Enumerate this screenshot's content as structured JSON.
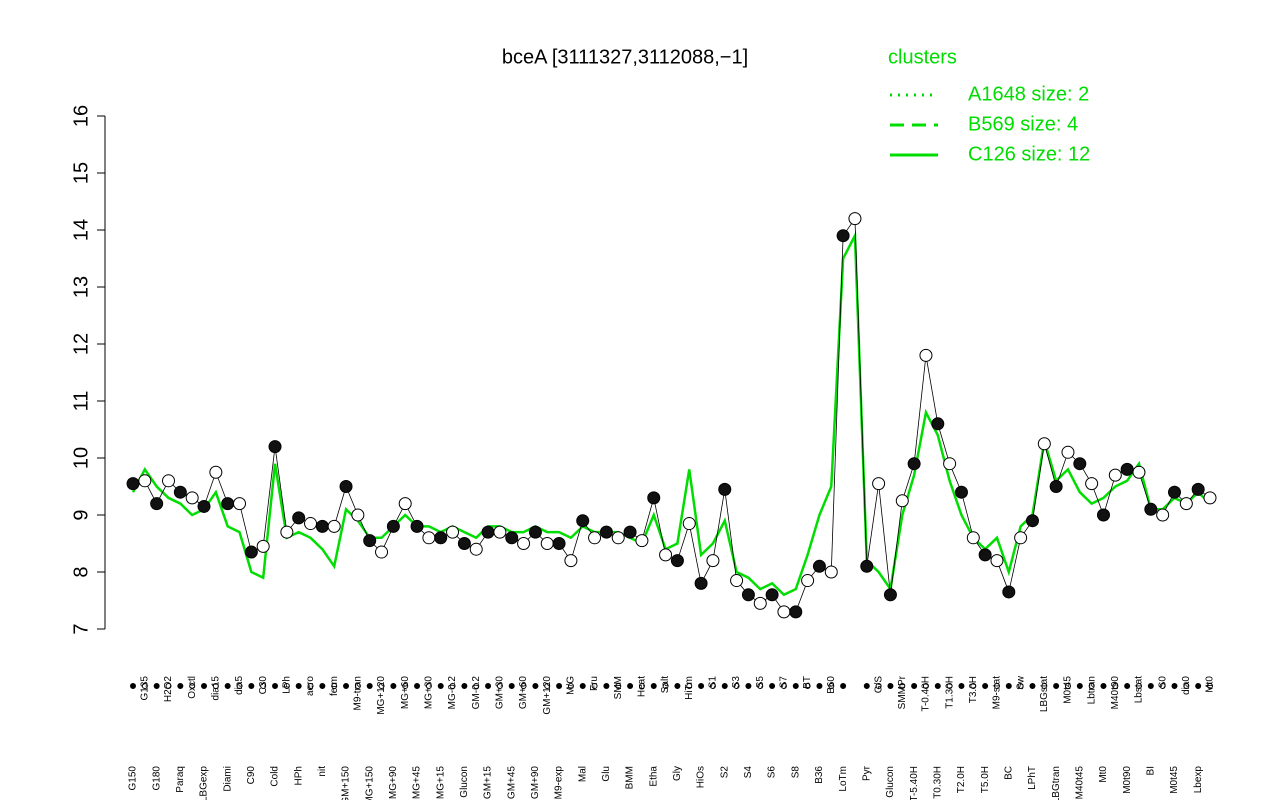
{
  "chart_data": {
    "type": "line",
    "title": "bceA [3111327,3112088,−1]",
    "legend_title": "clusters",
    "legend_position": "top-right",
    "ylim": [
      7,
      16
    ],
    "yticks": [
      7,
      8,
      9,
      10,
      11,
      12,
      13,
      14,
      15,
      16
    ],
    "categories": [
      "G150",
      "G135",
      "G180",
      "H2O2",
      "Paraq",
      "Oxctl",
      "LBGexp",
      "dia15",
      "Diami",
      "dia5",
      "C90",
      "C30",
      "Cold",
      "LPh",
      "HPh",
      "aero",
      "nit",
      "ferm",
      "GM+150",
      "M9-tran",
      "MG+150",
      "MG+120",
      "MG+90",
      "MG+60",
      "MG+45",
      "MG+30",
      "MG+15",
      "MG-0.2",
      "Glucon",
      "GM-0.2",
      "GM+15",
      "GM+30",
      "GM+45",
      "GM+60",
      "GM+90",
      "GM+120",
      "M9-exp",
      "M/G",
      "Mal",
      "Fru",
      "Glu",
      "SMM",
      "BMM",
      "Heat",
      "Etha",
      "Salt",
      "Gly",
      "HiTm",
      "HiOs",
      "S1",
      "S2",
      "S3",
      "S4",
      "S5",
      "S6",
      "S7",
      "S8",
      "BT",
      "B36",
      "B60",
      "LoTm",
      null,
      "Pyr",
      "G/S",
      "Glucon",
      "SMMPr",
      "T-5.40H",
      "T-0.40H",
      "T0.30H",
      "T1.30H",
      "T2.0H",
      "T3.0H",
      "T5.0H",
      "M9-stat",
      "BC",
      "Sw",
      "LPhT",
      "LBGstat",
      "LBGtran",
      "M0t45",
      "M40t45",
      "Lbtran",
      "Mt0",
      "M40t90",
      "M0t90",
      "Lbstat",
      "BI",
      "S0",
      "M0t45",
      "dia0",
      "Lbexp",
      "Mt0"
    ],
    "values": [
      9.55,
      9.6,
      9.2,
      9.6,
      9.4,
      9.3,
      9.15,
      9.75,
      9.2,
      9.2,
      8.35,
      8.45,
      10.2,
      8.7,
      8.95,
      8.85,
      8.8,
      8.8,
      9.5,
      9.0,
      8.55,
      8.35,
      8.8,
      9.2,
      8.8,
      8.6,
      8.6,
      8.7,
      8.5,
      8.4,
      8.7,
      8.7,
      8.6,
      8.5,
      8.7,
      8.5,
      8.5,
      8.2,
      8.9,
      8.6,
      8.7,
      8.6,
      8.7,
      8.55,
      9.3,
      8.3,
      8.2,
      8.85,
      7.8,
      8.2,
      9.45,
      7.85,
      7.6,
      7.45,
      7.6,
      7.3,
      7.3,
      7.85,
      8.1,
      8.0,
      13.9,
      14.2,
      8.1,
      9.55,
      7.6,
      9.25,
      9.9,
      11.8,
      10.6,
      9.9,
      9.4,
      8.6,
      8.3,
      8.2,
      7.65,
      8.6,
      8.9,
      10.25,
      9.5,
      10.1,
      9.9,
      9.55,
      9.0,
      9.7,
      9.8,
      9.75,
      9.1,
      9.0,
      9.4,
      9.2,
      9.45,
      9.3
    ],
    "series": [
      {
        "name": "A1648 size: 2",
        "color": "#00dd00",
        "style": "dotted"
      },
      {
        "name": "B569 size: 4",
        "color": "#00dd00",
        "style": "dashed"
      },
      {
        "name": "C126 size: 12",
        "color": "#00dd00",
        "style": "solid",
        "values": [
          9.4,
          9.8,
          9.5,
          9.3,
          9.2,
          9.0,
          9.1,
          9.4,
          8.8,
          8.7,
          8.0,
          7.9,
          9.9,
          8.6,
          8.7,
          8.6,
          8.4,
          8.1,
          9.1,
          8.9,
          8.6,
          8.6,
          8.8,
          9.0,
          8.8,
          8.8,
          8.7,
          8.8,
          8.7,
          8.6,
          8.8,
          8.8,
          8.7,
          8.7,
          8.8,
          8.7,
          8.7,
          8.6,
          8.8,
          8.7,
          8.7,
          8.7,
          8.6,
          8.5,
          9.0,
          8.4,
          8.5,
          9.8,
          8.3,
          8.5,
          8.9,
          8.0,
          7.9,
          7.7,
          7.8,
          7.6,
          7.7,
          8.3,
          9.0,
          9.5,
          13.5,
          13.9,
          8.2,
          8.0,
          7.7,
          9.0,
          9.7,
          10.8,
          10.4,
          9.6,
          9.0,
          8.6,
          8.4,
          8.6,
          8.0,
          8.8,
          9.0,
          10.3,
          9.6,
          9.8,
          9.4,
          9.2,
          9.3,
          9.5,
          9.6,
          9.9,
          9.1,
          9.1,
          9.3,
          9.2,
          9.4,
          9.2
        ]
      }
    ]
  }
}
